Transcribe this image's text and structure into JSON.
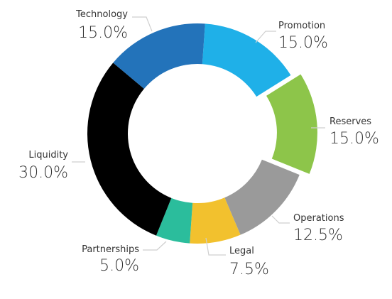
{
  "chart_data": {
    "type": "pie",
    "donut": true,
    "title": "",
    "legend": "none",
    "slices": [
      {
        "label": "Promotion",
        "value": 15.0,
        "display": "15.0%",
        "color": "#1fb0e8",
        "exploded": false
      },
      {
        "label": "Reserves",
        "value": 15.0,
        "display": "15.0%",
        "color": "#8dc54a",
        "exploded": true
      },
      {
        "label": "Operations",
        "value": 12.5,
        "display": "12.5%",
        "color": "#9a9a9a",
        "exploded": false
      },
      {
        "label": "Legal",
        "value": 7.5,
        "display": "7.5%",
        "color": "#f2c12e",
        "exploded": false
      },
      {
        "label": "Partnerships",
        "value": 5.0,
        "display": "5.0%",
        "color": "#2bbd9c",
        "exploded": false
      },
      {
        "label": "Liquidity",
        "value": 30.0,
        "display": "30.0%",
        "color": "#000000",
        "exploded": false
      },
      {
        "label": "Technology",
        "value": 15.0,
        "display": "15.0%",
        "color": "#2373ba",
        "exploded": false
      }
    ]
  }
}
